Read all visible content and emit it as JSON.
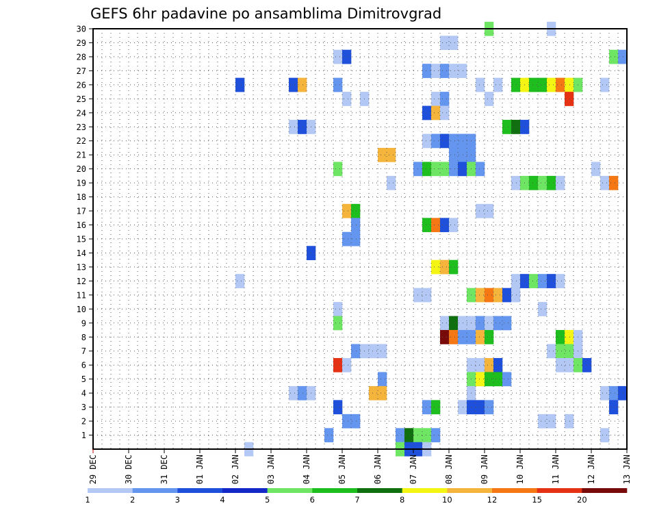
{
  "chart_data": {
    "type": "heatmap",
    "title": "GEFS 6hr padavine po ansamblima Dimitrovgrad",
    "x_tick_labels": [
      "29 DEC",
      "30 DEC",
      "31 DEC",
      "01 JAN",
      "02 JAN",
      "03 JAN",
      "04 JAN",
      "05 JAN",
      "06 JAN",
      "07 JAN",
      "08 JAN",
      "09 JAN",
      "10 JAN",
      "11 JAN",
      "12 JAN",
      "13 JAN"
    ],
    "x_range_steps": [
      0,
      60
    ],
    "y_tick_labels": [
      "1",
      "2",
      "3",
      "4",
      "5",
      "6",
      "7",
      "8",
      "9",
      "10",
      "11",
      "12",
      "13",
      "14",
      "15",
      "16",
      "17",
      "18",
      "19",
      "20",
      "21",
      "22",
      "23",
      "24",
      "25",
      "26",
      "27",
      "28",
      "29",
      "30"
    ],
    "y_range": [
      0,
      30
    ],
    "grid": true,
    "legend": {
      "placement": "bottom",
      "labels": [
        "1",
        "2",
        "3",
        "4",
        "5",
        "6",
        "7",
        "8",
        "10",
        "12",
        "15",
        "20"
      ],
      "colors": [
        "#b4c8f5",
        "#6496f0",
        "#1e50dc",
        "#1428c8",
        "#6ee664",
        "#1ebe1e",
        "#107010",
        "#f5f514",
        "#f5b43c",
        "#f57814",
        "#e63214",
        "#780a0a"
      ]
    },
    "cells": [
      [
        44,
        30,
        5
      ],
      [
        51,
        30,
        1
      ],
      [
        39,
        29,
        1
      ],
      [
        40,
        29,
        1
      ],
      [
        27,
        28,
        1
      ],
      [
        28,
        28,
        3
      ],
      [
        58,
        28,
        5
      ],
      [
        59,
        28,
        2
      ],
      [
        37,
        27,
        2
      ],
      [
        38,
        27,
        1
      ],
      [
        39,
        27,
        2
      ],
      [
        40,
        27,
        1
      ],
      [
        41,
        27,
        1
      ],
      [
        16,
        26,
        3
      ],
      [
        22,
        26,
        3
      ],
      [
        23,
        26,
        10
      ],
      [
        27,
        26,
        2
      ],
      [
        43,
        26,
        1
      ],
      [
        45,
        26,
        1
      ],
      [
        47,
        26,
        6
      ],
      [
        48,
        26,
        8
      ],
      [
        49,
        26,
        6
      ],
      [
        50,
        26,
        6
      ],
      [
        51,
        26,
        8
      ],
      [
        52,
        26,
        12
      ],
      [
        53,
        26,
        8
      ],
      [
        54,
        26,
        5
      ],
      [
        57,
        26,
        1
      ],
      [
        28,
        25,
        1
      ],
      [
        30,
        25,
        1
      ],
      [
        38,
        25,
        1
      ],
      [
        39,
        25,
        2
      ],
      [
        44,
        25,
        1
      ],
      [
        53,
        25,
        15
      ],
      [
        37,
        24,
        3
      ],
      [
        38,
        24,
        10
      ],
      [
        39,
        24,
        1
      ],
      [
        22,
        23,
        1
      ],
      [
        23,
        23,
        3
      ],
      [
        24,
        23,
        1
      ],
      [
        46,
        23,
        6
      ],
      [
        47,
        23,
        7
      ],
      [
        48,
        23,
        3
      ],
      [
        37,
        22,
        1
      ],
      [
        38,
        22,
        2
      ],
      [
        39,
        22,
        3
      ],
      [
        40,
        22,
        2
      ],
      [
        41,
        22,
        2
      ],
      [
        42,
        22,
        2
      ],
      [
        32,
        21,
        10
      ],
      [
        33,
        21,
        10
      ],
      [
        40,
        21,
        2
      ],
      [
        41,
        21,
        2
      ],
      [
        42,
        21,
        2
      ],
      [
        27,
        20,
        5
      ],
      [
        36,
        20,
        2
      ],
      [
        37,
        20,
        6
      ],
      [
        38,
        20,
        5
      ],
      [
        39,
        20,
        5
      ],
      [
        40,
        20,
        2
      ],
      [
        41,
        20,
        3
      ],
      [
        42,
        20,
        5
      ],
      [
        43,
        20,
        2
      ],
      [
        56,
        20,
        1
      ],
      [
        33,
        19,
        1
      ],
      [
        47,
        19,
        1
      ],
      [
        48,
        19,
        5
      ],
      [
        49,
        19,
        6
      ],
      [
        50,
        19,
        5
      ],
      [
        51,
        19,
        6
      ],
      [
        52,
        19,
        1
      ],
      [
        57,
        19,
        1
      ],
      [
        58,
        19,
        12
      ],
      [
        28,
        17,
        10
      ],
      [
        29,
        17,
        6
      ],
      [
        43,
        17,
        1
      ],
      [
        44,
        17,
        1
      ],
      [
        29,
        16,
        2
      ],
      [
        37,
        16,
        6
      ],
      [
        38,
        16,
        12
      ],
      [
        39,
        16,
        3
      ],
      [
        40,
        16,
        1
      ],
      [
        28,
        15,
        2
      ],
      [
        29,
        15,
        2
      ],
      [
        24,
        14,
        3
      ],
      [
        38,
        13,
        8
      ],
      [
        39,
        13,
        10
      ],
      [
        40,
        13,
        6
      ],
      [
        16,
        12,
        1
      ],
      [
        47,
        12,
        1
      ],
      [
        48,
        12,
        3
      ],
      [
        49,
        12,
        5
      ],
      [
        50,
        12,
        2
      ],
      [
        51,
        12,
        3
      ],
      [
        52,
        12,
        1
      ],
      [
        36,
        11,
        1
      ],
      [
        37,
        11,
        1
      ],
      [
        42,
        11,
        5
      ],
      [
        43,
        11,
        10
      ],
      [
        44,
        11,
        12
      ],
      [
        45,
        11,
        10
      ],
      [
        46,
        11,
        3
      ],
      [
        47,
        11,
        1
      ],
      [
        27,
        10,
        1
      ],
      [
        50,
        10,
        1
      ],
      [
        27,
        9,
        5
      ],
      [
        39,
        9,
        1
      ],
      [
        40,
        9,
        7
      ],
      [
        41,
        9,
        1
      ],
      [
        42,
        9,
        1
      ],
      [
        43,
        9,
        2
      ],
      [
        44,
        9,
        1
      ],
      [
        45,
        9,
        2
      ],
      [
        46,
        9,
        2
      ],
      [
        39,
        8,
        20
      ],
      [
        40,
        8,
        12
      ],
      [
        41,
        8,
        2
      ],
      [
        42,
        8,
        2
      ],
      [
        43,
        8,
        10
      ],
      [
        44,
        8,
        6
      ],
      [
        52,
        8,
        6
      ],
      [
        53,
        8,
        8
      ],
      [
        54,
        8,
        1
      ],
      [
        29,
        7,
        2
      ],
      [
        30,
        7,
        1
      ],
      [
        31,
        7,
        1
      ],
      [
        32,
        7,
        1
      ],
      [
        51,
        7,
        1
      ],
      [
        52,
        7,
        5
      ],
      [
        53,
        7,
        5
      ],
      [
        54,
        7,
        1
      ],
      [
        27,
        6,
        15
      ],
      [
        28,
        6,
        1
      ],
      [
        42,
        6,
        1
      ],
      [
        43,
        6,
        1
      ],
      [
        44,
        6,
        10
      ],
      [
        45,
        6,
        3
      ],
      [
        52,
        6,
        1
      ],
      [
        53,
        6,
        1
      ],
      [
        54,
        6,
        5
      ],
      [
        55,
        6,
        3
      ],
      [
        32,
        5,
        2
      ],
      [
        42,
        5,
        5
      ],
      [
        43,
        5,
        8
      ],
      [
        44,
        5,
        6
      ],
      [
        45,
        5,
        6
      ],
      [
        46,
        5,
        2
      ],
      [
        22,
        4,
        1
      ],
      [
        23,
        4,
        2
      ],
      [
        24,
        4,
        1
      ],
      [
        31,
        4,
        10
      ],
      [
        32,
        4,
        10
      ],
      [
        42,
        4,
        1
      ],
      [
        57,
        4,
        1
      ],
      [
        58,
        4,
        2
      ],
      [
        59,
        4,
        3
      ],
      [
        27,
        3,
        3
      ],
      [
        37,
        3,
        2
      ],
      [
        38,
        3,
        6
      ],
      [
        41,
        3,
        1
      ],
      [
        42,
        3,
        3
      ],
      [
        43,
        3,
        3
      ],
      [
        44,
        3,
        2
      ],
      [
        58,
        3,
        3
      ],
      [
        28,
        2,
        2
      ],
      [
        29,
        2,
        2
      ],
      [
        50,
        2,
        1
      ],
      [
        51,
        2,
        1
      ],
      [
        53,
        2,
        1
      ],
      [
        26,
        1,
        2
      ],
      [
        34,
        1,
        2
      ],
      [
        35,
        1,
        7
      ],
      [
        36,
        1,
        5
      ],
      [
        37,
        1,
        5
      ],
      [
        38,
        1,
        2
      ],
      [
        57,
        1,
        1
      ],
      [
        17,
        0,
        1
      ],
      [
        34,
        0,
        5
      ],
      [
        35,
        0,
        3
      ],
      [
        36,
        0,
        3
      ],
      [
        37,
        0,
        1
      ]
    ]
  }
}
